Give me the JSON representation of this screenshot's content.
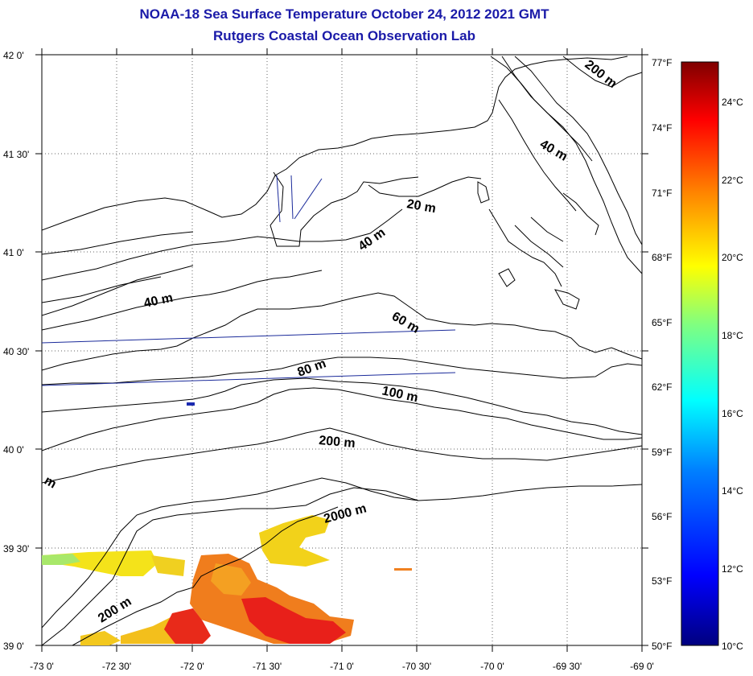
{
  "title": "NOAA-18 Sea Surface Temperature October 24, 2012 2021 GMT",
  "subtitle": "Rutgers Coastal Ocean Observation Lab",
  "axes": {
    "lat_labels": [
      "42 0'",
      "41 30'",
      "41 0'",
      "40 30'",
      "40 0'",
      "39 30'",
      "39 0'"
    ],
    "lon_labels": [
      "-73 0'",
      "-72 30'",
      "-72 0'",
      "-71 30'",
      "-71 0'",
      "-70 30'",
      "-70 0'",
      "-69 30'",
      "-69 0'"
    ],
    "lat_range": [
      39.0,
      42.0
    ],
    "lon_range": [
      -73.0,
      -69.0
    ],
    "grid": "dotted"
  },
  "isobaths": {
    "l20": "20 m",
    "l40a": "40 m",
    "l40b": "40 m",
    "l40c": "40 m",
    "l60": "60 m",
    "l80": "80 m",
    "l100": "100 m",
    "l200a": "200 m",
    "l200b": "200 m",
    "l200c": "200 m",
    "l2000": "2000 m",
    "lm": "m"
  },
  "colorbar": {
    "fahrenheit": [
      "77°F",
      "74°F",
      "71°F",
      "68°F",
      "65°F",
      "62°F",
      "59°F",
      "56°F",
      "53°F",
      "50°F"
    ],
    "celsius": [
      "24°C",
      "22°C",
      "20°C",
      "18°C",
      "16°C",
      "14°C",
      "12°C",
      "10°C"
    ],
    "range_c": [
      10,
      25
    ],
    "colors": [
      "#00007f",
      "#0000ff",
      "#0080ff",
      "#00ffff",
      "#80ff80",
      "#ffff00",
      "#ff8000",
      "#ff0000",
      "#7f0000"
    ]
  },
  "colors": {
    "title": "#1a1aa8",
    "track": "#1a2a9a",
    "coast": "#000000"
  }
}
